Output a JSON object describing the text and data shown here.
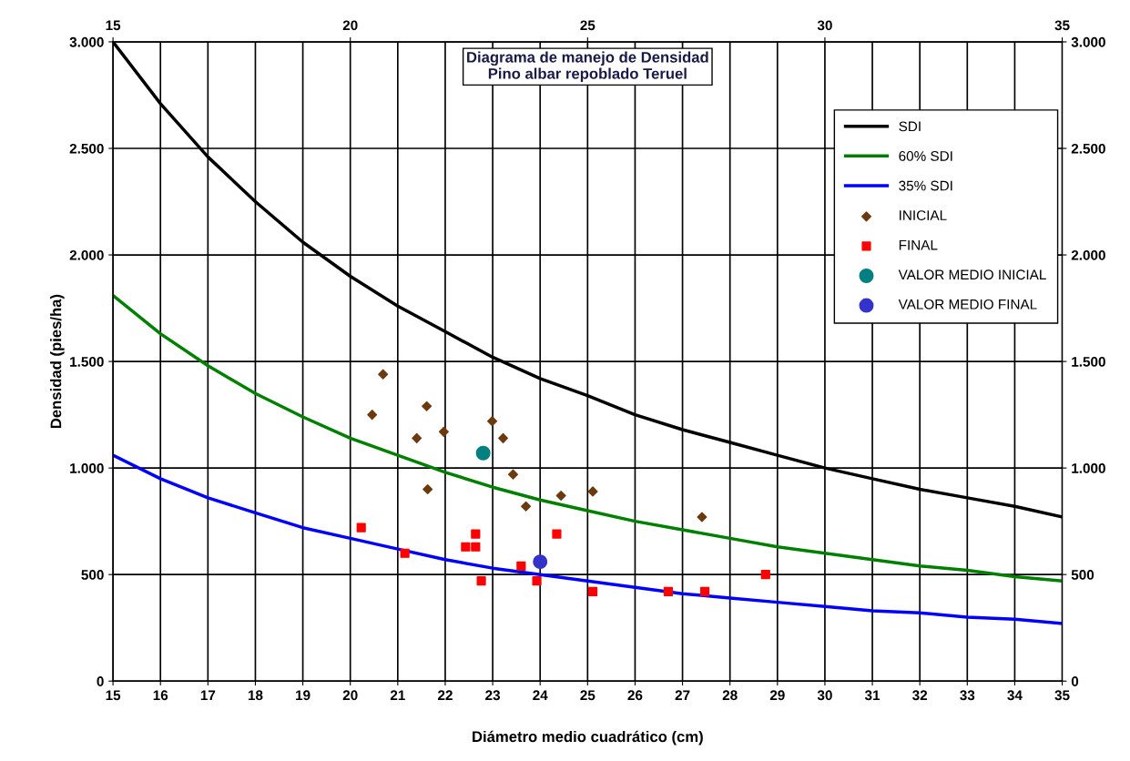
{
  "chart_data": {
    "type": "line",
    "title": "Diagrama de manejo de Densidad\nPino albar repoblado Teruel",
    "xlabel": "Diámetro medio cuadrático (cm)",
    "ylabel": "Densidad (pies/ha)",
    "xlim": [
      15,
      35
    ],
    "xticks": [
      15,
      16,
      17,
      18,
      19,
      20,
      21,
      22,
      23,
      24,
      25,
      26,
      27,
      28,
      29,
      30,
      31,
      32,
      33,
      34,
      35
    ],
    "x2lim": [
      15,
      35
    ],
    "x2ticks": [
      15,
      20,
      25,
      30,
      35
    ],
    "ylim": [
      0,
      3000
    ],
    "yticks": [
      {
        "value": 0,
        "label": "0"
      },
      {
        "value": 500,
        "label": "500"
      },
      {
        "value": 1000,
        "label": "1.000"
      },
      {
        "value": 1500,
        "label": "1.500"
      },
      {
        "value": 2000,
        "label": "2.000"
      },
      {
        "value": 2500,
        "label": "2.500"
      },
      {
        "value": 3000,
        "label": "3.000"
      }
    ],
    "y2lim": [
      0,
      3000
    ],
    "y2ticks": [
      {
        "value": 0,
        "label": "0"
      },
      {
        "value": 500,
        "label": "500"
      },
      {
        "value": 1000,
        "label": "1.000"
      },
      {
        "value": 1500,
        "label": "1.500"
      },
      {
        "value": 2000,
        "label": "2.000"
      },
      {
        "value": 2500,
        "label": "2.500"
      },
      {
        "value": 3000,
        "label": "3.000"
      }
    ],
    "grid": true,
    "legend": "top right",
    "series": [
      {
        "name": "SDI",
        "color": "#000000",
        "marker": "none",
        "x": [
          15,
          16,
          17,
          18,
          19,
          20,
          21,
          22,
          23,
          24,
          25,
          26,
          27,
          28,
          29,
          30,
          31,
          32,
          33,
          34,
          35
        ],
        "values": [
          3000,
          2710,
          2460,
          2250,
          2060,
          1900,
          1760,
          1640,
          1520,
          1420,
          1340,
          1250,
          1180,
          1120,
          1060,
          1000,
          950,
          900,
          860,
          820,
          770
        ]
      },
      {
        "name": "60% SDI",
        "color": "#008000",
        "marker": "none",
        "x": [
          15,
          16,
          17,
          18,
          19,
          20,
          21,
          22,
          23,
          24,
          25,
          26,
          27,
          28,
          29,
          30,
          31,
          32,
          33,
          34,
          35
        ],
        "values": [
          1810,
          1630,
          1480,
          1350,
          1240,
          1140,
          1060,
          980,
          910,
          850,
          800,
          750,
          710,
          670,
          630,
          600,
          570,
          540,
          520,
          490,
          470
        ]
      },
      {
        "name": "35% SDI",
        "color": "#0000ff",
        "marker": "none",
        "x": [
          15,
          16,
          17,
          18,
          19,
          20,
          21,
          22,
          23,
          24,
          25,
          26,
          27,
          28,
          29,
          30,
          31,
          32,
          33,
          34,
          35
        ],
        "values": [
          1060,
          950,
          860,
          790,
          720,
          670,
          620,
          570,
          530,
          500,
          470,
          440,
          410,
          390,
          370,
          350,
          330,
          320,
          300,
          290,
          270
        ]
      },
      {
        "name": "INICIAL",
        "type": "scatter",
        "color": "#6b3a10",
        "marker": "diamond",
        "x": [
          20.69,
          20.46,
          21.61,
          21.4,
          21.97,
          22.99,
          23.22,
          23.43,
          21.63,
          23.7,
          24.44,
          25.11,
          27.41
        ],
        "values": [
          1440,
          1250,
          1290,
          1140,
          1170,
          1220,
          1140,
          970,
          900,
          820,
          870,
          890,
          770
        ]
      },
      {
        "name": "FINAL",
        "type": "scatter",
        "color": "#ff0000",
        "marker": "square",
        "x": [
          20.23,
          21.15,
          22.64,
          22.43,
          22.64,
          22.76,
          23.6,
          24.35,
          23.93,
          25.11,
          26.7,
          27.47,
          28.75
        ],
        "values": [
          720,
          600,
          690,
          630,
          630,
          470,
          540,
          690,
          470,
          420,
          420,
          420,
          500
        ]
      },
      {
        "name": "VALOR MEDIO INICIAL",
        "type": "scatter",
        "color": "#008080",
        "marker": "circle",
        "x": [
          22.8
        ],
        "values": [
          1070
        ]
      },
      {
        "name": "VALOR MEDIO FINAL",
        "type": "scatter",
        "color": "#3333cc",
        "marker": "circle",
        "x": [
          24.0
        ],
        "values": [
          560
        ]
      }
    ]
  }
}
